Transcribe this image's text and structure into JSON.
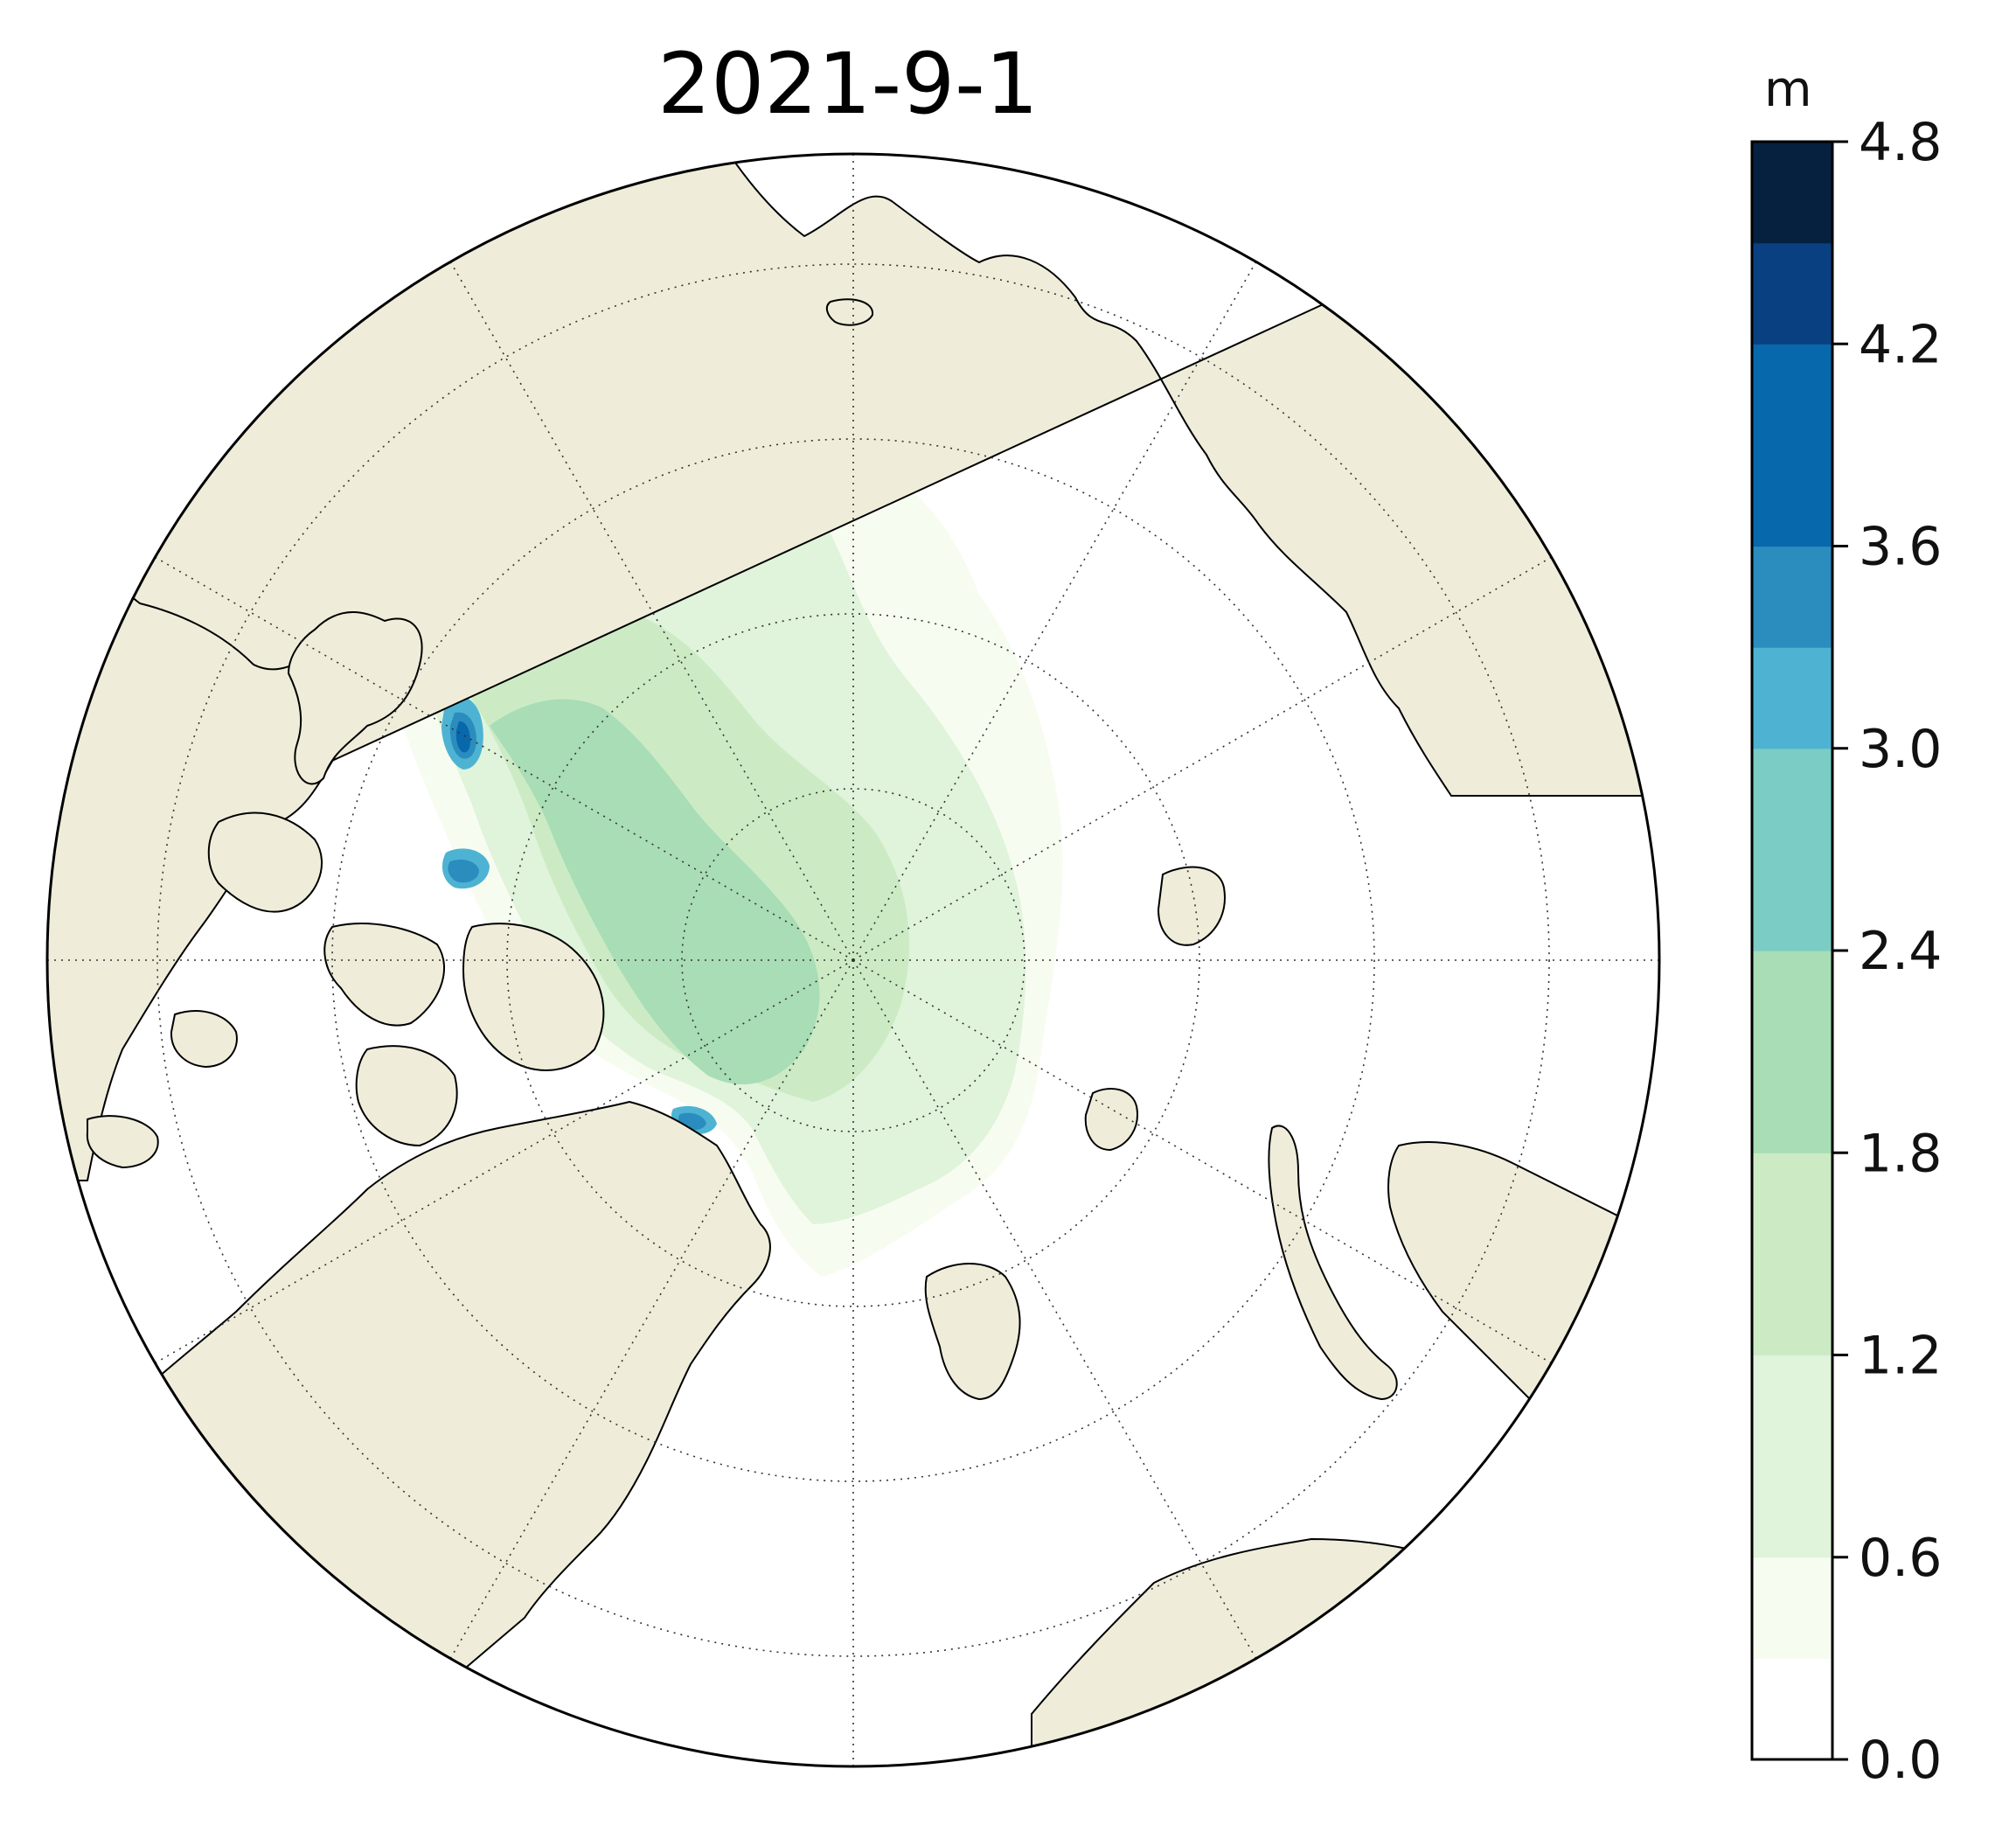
{
  "map": {
    "title": "2021-9-1",
    "projection": "north-polar-stereographic",
    "colors": {
      "land": "#efedda",
      "coastline": "#000000",
      "ocean": "#ffffff",
      "gridline": "#333333"
    }
  },
  "colorbar": {
    "unit": "m",
    "ticks": [
      "0.0",
      "0.6",
      "1.2",
      "1.8",
      "2.4",
      "3.0",
      "3.6",
      "4.2",
      "4.8"
    ],
    "levels": [
      0.0,
      0.3,
      0.6,
      0.9,
      1.2,
      1.5,
      1.8,
      2.1,
      2.4,
      2.7,
      3.0,
      3.3,
      3.6,
      3.9,
      4.2,
      4.5,
      4.8
    ],
    "level_colors": [
      "#ffffff",
      "#f7fcf0",
      "#e0f3db",
      "#e0f3db",
      "#ccebc5",
      "#ccebc5",
      "#a8ddb5",
      "#a8ddb5",
      "#7bccc4",
      "#7bccc4",
      "#4eb3d3",
      "#2b8cbe",
      "#0868ac",
      "#0868ac",
      "#084081",
      "#062040"
    ]
  }
}
